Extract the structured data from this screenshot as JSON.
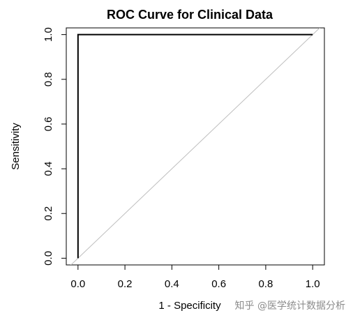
{
  "chart_data": {
    "type": "line",
    "title": "ROC Curve for Clinical Data",
    "xlabel": "1 - Specificity",
    "ylabel": "Sensitivity",
    "xlim": [
      -0.05,
      1.05
    ],
    "ylim": [
      -0.03,
      1.03
    ],
    "xticks": [
      "0.0",
      "0.2",
      "0.4",
      "0.6",
      "0.8",
      "1.0"
    ],
    "yticks": [
      "0.0",
      "0.2",
      "0.4",
      "0.6",
      "0.8",
      "1.0"
    ],
    "grid": false,
    "legend": "none",
    "series": [
      {
        "x": [
          0.0,
          0.0,
          1.0
        ],
        "y": [
          0.0,
          1.0,
          1.0
        ],
        "color": "#000000"
      }
    ],
    "reference_line": {
      "intercept": 0,
      "slope": 1,
      "color": "#bebebe"
    }
  },
  "watermark": {
    "text": "知乎 @医学统计数据分析"
  }
}
